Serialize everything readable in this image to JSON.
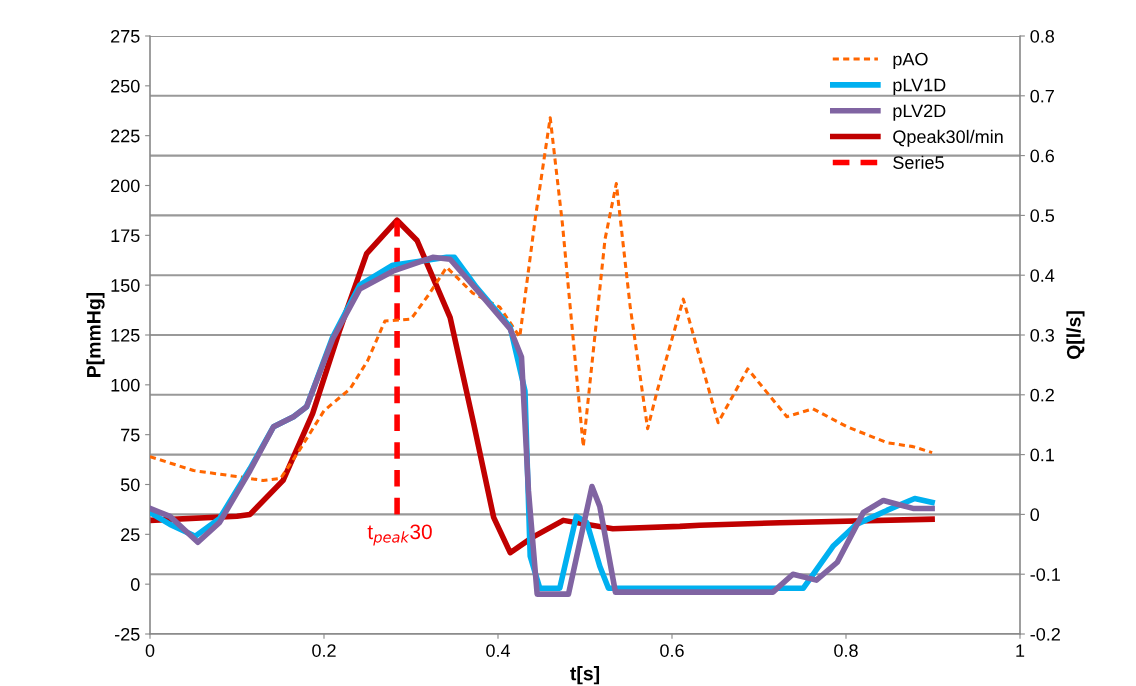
{
  "chart_data": {
    "type": "line",
    "xlabel": "t[s]",
    "ylabel": "P[mmHg]",
    "y2label": "Q[l/s]",
    "xlim": [
      0,
      1
    ],
    "xticks": [
      0,
      0.2,
      0.4,
      0.6,
      0.8,
      1
    ],
    "ylim": [
      -25,
      275
    ],
    "yticks": [
      -25,
      0,
      25,
      50,
      75,
      100,
      125,
      150,
      175,
      200,
      225,
      250,
      275
    ],
    "y2lim": [
      -0.2,
      0.8
    ],
    "y2ticks": [
      -0.2,
      -0.1,
      0,
      0.1,
      0.2,
      0.3,
      0.4,
      0.5,
      0.6,
      0.7,
      0.8
    ],
    "grid": true,
    "legend": "top right",
    "marker": "none",
    "annotations": [
      "t$_{peak}$30"
    ],
    "series": [
      {
        "name": "pAO",
        "color": "#ff6600",
        "line_style": "dashed",
        "x": [
          0,
          0.05,
          0.1,
          0.13,
          0.15,
          0.17,
          0.2,
          0.23,
          0.25,
          0.27,
          0.3,
          0.32,
          0.341,
          0.371,
          0.402,
          0.425,
          0.443,
          0.46,
          0.474,
          0.498,
          0.523,
          0.536,
          0.552,
          0.572,
          0.583,
          0.613,
          0.653,
          0.687,
          0.732,
          0.762,
          0.801,
          0.847,
          0.877,
          0.899
        ],
        "values": [
          64,
          57,
          54,
          52,
          53,
          66,
          87,
          98,
          112,
          132,
          133,
          145,
          159,
          146,
          139,
          124,
          184,
          234,
          181,
          69,
          173,
          201,
          139,
          78,
          97,
          143,
          81,
          108,
          84,
          88,
          79,
          71,
          69,
          66
        ]
      },
      {
        "name": "pLV1D",
        "color": "#00b0f0",
        "line_style": "solid",
        "x": [
          0,
          0.023,
          0.052,
          0.08,
          0.115,
          0.142,
          0.165,
          0.18,
          0.21,
          0.241,
          0.279,
          0.341,
          0.35,
          0.375,
          0.414,
          0.431,
          0.437,
          0.448,
          0.471,
          0.49,
          0.502,
          0.517,
          0.527,
          0.751,
          0.785,
          0.812,
          0.847,
          0.879,
          0.899
        ],
        "values": [
          36,
          30,
          24,
          33,
          58,
          79,
          84,
          89,
          124,
          150,
          160,
          164,
          164,
          149,
          129,
          97,
          14,
          -2,
          -2,
          34,
          31,
          9,
          -2,
          -2,
          19,
          30,
          37,
          43,
          41
        ]
      },
      {
        "name": "pLV2D",
        "color": "#8064a2",
        "line_style": "solid",
        "x": [
          0,
          0.023,
          0.055,
          0.08,
          0.115,
          0.142,
          0.165,
          0.18,
          0.21,
          0.241,
          0.279,
          0.325,
          0.345,
          0.375,
          0.414,
          0.427,
          0.435,
          0.445,
          0.481,
          0.508,
          0.517,
          0.535,
          0.716,
          0.739,
          0.766,
          0.79,
          0.82,
          0.843,
          0.877,
          0.899
        ],
        "values": [
          38,
          34,
          21,
          31,
          57,
          79,
          84,
          89,
          123,
          148,
          157,
          164,
          163,
          148,
          128,
          114,
          47,
          -5,
          -5,
          49,
          39,
          -4,
          -4,
          5,
          2,
          11,
          36,
          42,
          38,
          38
        ]
      },
      {
        "name": "Qpeak30l/min",
        "color": "#c00000",
        "line_style": "solid",
        "axis": "y2",
        "x": [
          0,
          0.1,
          0.115,
          0.153,
          0.187,
          0.218,
          0.249,
          0.284,
          0.307,
          0.345,
          0.372,
          0.395,
          0.414,
          0.44,
          0.475,
          0.532,
          0.609,
          0.632,
          0.724,
          0.899
        ],
        "values": [
          -0.01,
          -0.003,
          0,
          0.057,
          0.169,
          0.308,
          0.436,
          0.492,
          0.458,
          0.329,
          0.152,
          -0.005,
          -0.064,
          -0.038,
          -0.01,
          -0.024,
          -0.02,
          -0.018,
          -0.014,
          -0.008
        ]
      },
      {
        "name": "Serie5",
        "color": "#ff0000",
        "line_style": "dashed",
        "axis": "y2",
        "x": [
          0.284,
          0.284
        ],
        "values": [
          0,
          0.492
        ]
      }
    ]
  }
}
